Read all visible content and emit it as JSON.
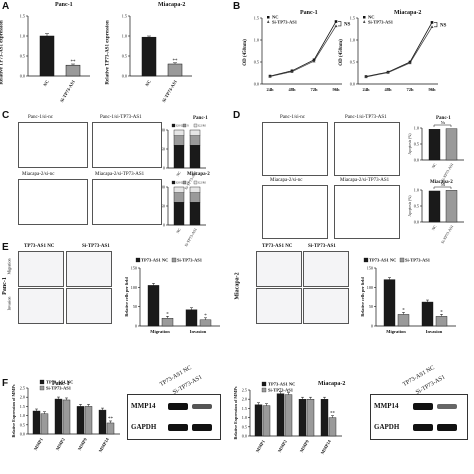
{
  "panels": {
    "A": "A",
    "B": "B",
    "C": "C",
    "D": "D",
    "E": "E",
    "F": "F"
  },
  "cell_lines": {
    "panc": "Panc-1",
    "mia": "Miacapa-2"
  },
  "A": {
    "ylabel": "Relative TP73-AS1 expression",
    "cats": [
      "NC",
      "Si-TP73-AS1"
    ],
    "sig": "**",
    "panc": {
      "ticks": [
        "0.0",
        "0.5",
        "1.0",
        "1.5"
      ],
      "values": [
        1.0,
        0.27
      ],
      "err": [
        0.06,
        0.03
      ]
    },
    "mia": {
      "ticks": [
        "0.0",
        "0.5",
        "1.0",
        "1.5"
      ],
      "values": [
        0.97,
        0.3
      ],
      "err": [
        0.03,
        0.03
      ]
    }
  },
  "B": {
    "ylabel": "OD (450nm)",
    "x": [
      "24h",
      "48h",
      "72h",
      "96h"
    ],
    "ticks": [
      "0.0",
      "0.5",
      "1.0",
      "1.5"
    ],
    "ns": "NS",
    "legend": [
      "NC",
      "Si-TP73-AS1"
    ],
    "panc": {
      "nc": [
        0.18,
        0.3,
        0.55,
        1.42
      ],
      "si": [
        0.17,
        0.28,
        0.52,
        1.32
      ]
    },
    "mia": {
      "nc": [
        0.17,
        0.27,
        0.5,
        1.4
      ],
      "si": [
        0.16,
        0.26,
        0.48,
        1.3
      ]
    }
  },
  "C": {
    "labels": [
      "Panc-1/si-nc",
      "Panc-1/si-TP73-AS1",
      "Miacapa-2/si-nc",
      "Miacapa-2/si-TP73-AS1"
    ],
    "ylabel": "PDR percentage (%)",
    "legend": [
      "G0/G1",
      "S",
      "G2/M"
    ],
    "cats": [
      "NC",
      "Si-TP73-AS1"
    ],
    "ticks": [
      "0",
      "50",
      "100"
    ]
  },
  "D": {
    "labels": [
      "Panc-1/si-nc",
      "Panc-1/si-TP73-AS1",
      "Miacapa-2/si-nc",
      "Miacapa-2/si-TP73-AS1"
    ],
    "ylabel": "Apoptosis (%)",
    "cats": [
      "NC",
      "Si-TP73-AS1"
    ],
    "ns": "Ns",
    "panc": [
      0.96,
      0.98
    ],
    "mia": [
      0.97,
      0.99
    ]
  },
  "E": {
    "panc": {
      "head": [
        "TP73-AS1 NC",
        "Si-TP73-AS1"
      ],
      "rows": [
        "Migration",
        "Invasion"
      ],
      "values": {
        "nc": [
          105,
          42
        ],
        "si": [
          20,
          16
        ]
      },
      "ticks": [
        "0",
        "50",
        "100",
        "150"
      ]
    },
    "mia": {
      "head": [
        "TP73-AS1 NC",
        "Si-TP73-AS1"
      ],
      "rows": [
        "Migration",
        "Invasion"
      ],
      "values": {
        "nc": [
          120,
          62
        ],
        "si": [
          30,
          25
        ]
      },
      "ticks": [
        "0",
        "50",
        "100",
        "150"
      ]
    },
    "ylabel": "Relative cells per field",
    "legend": [
      "TP73-AS1 NC",
      "Si-TP73-AS1"
    ],
    "cats": [
      "Migration",
      "Invasion"
    ],
    "sig": "*"
  },
  "F": {
    "ylabel": "Relative Expression of MMPs",
    "legend": [
      "TP73-AS1 NC",
      "Si-TP73-AS1"
    ],
    "cats": [
      "MMP1",
      "MMP2",
      "MMP9",
      "MMP14"
    ],
    "panc": {
      "nc": [
        1.25,
        1.9,
        1.5,
        1.3
      ],
      "si": [
        1.1,
        1.85,
        1.5,
        0.6
      ],
      "ticks": [
        "0.0",
        "0.5",
        "1.0",
        "1.5",
        "2.0",
        "2.5"
      ]
    },
    "mia": {
      "nc": [
        1.7,
        2.3,
        2.0,
        2.0
      ],
      "si": [
        1.65,
        2.25,
        2.0,
        1.0
      ],
      "ticks": [
        "0.0",
        "0.5",
        "1.0",
        "1.5",
        "2.0",
        "2.5"
      ]
    },
    "blot": {
      "head": [
        "TP73-AS1 NC",
        "Si-TP73-AS1"
      ],
      "rows": [
        "MMP14",
        "GAPDH"
      ]
    },
    "sig": "**"
  }
}
